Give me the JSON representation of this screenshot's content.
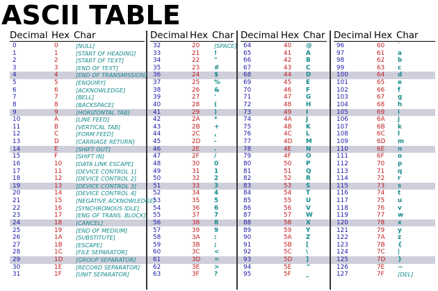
{
  "title": "ASCII TABLE",
  "headers": {
    "decimal": "Decimal",
    "hex": "Hex",
    "char": "Char"
  },
  "colors": {
    "decimal": "#1a1aa6",
    "hex": "#c41a1a",
    "char": "#138a8a",
    "band": "#cfcfdc"
  },
  "highlighted_row_indices": [
    4,
    9,
    14,
    19,
    24,
    29
  ],
  "columns": [
    {
      "rows": [
        {
          "dec": "0",
          "hex": "0",
          "char": "[NULL]"
        },
        {
          "dec": "1",
          "hex": "1",
          "char": "[START OF HEADING]"
        },
        {
          "dec": "2",
          "hex": "2",
          "char": "[START OF TEXT]"
        },
        {
          "dec": "3",
          "hex": "3",
          "char": "[END OF TEXT]"
        },
        {
          "dec": "4",
          "hex": "4",
          "char": "[END OF TRANSMISSION]"
        },
        {
          "dec": "5",
          "hex": "5",
          "char": "[ENQUIRY]"
        },
        {
          "dec": "6",
          "hex": "6",
          "char": "[ACKNOWLEDGE]"
        },
        {
          "dec": "7",
          "hex": "7",
          "char": "[BELL]"
        },
        {
          "dec": "8",
          "hex": "8",
          "char": "[BACKSPACE]"
        },
        {
          "dec": "9",
          "hex": "9",
          "char": "[HORIZONTAL TAB]"
        },
        {
          "dec": "10",
          "hex": "A",
          "char": "[LINE FEED]"
        },
        {
          "dec": "11",
          "hex": "B",
          "char": "[VERTICAL TAB]"
        },
        {
          "dec": "12",
          "hex": "C",
          "char": "[FORM FEED]"
        },
        {
          "dec": "13",
          "hex": "D",
          "char": "[CARRIAGE RETURN]"
        },
        {
          "dec": "14",
          "hex": "E",
          "char": "[SHIFT OUT]"
        },
        {
          "dec": "15",
          "hex": "F",
          "char": "[SHIFT IN]"
        },
        {
          "dec": "16",
          "hex": "10",
          "char": "[DATA LINK ESCAPE]"
        },
        {
          "dec": "17",
          "hex": "11",
          "char": "[DEVICE CONTROL 1]"
        },
        {
          "dec": "18",
          "hex": "12",
          "char": "[DEVICE CONTROL 2]"
        },
        {
          "dec": "19",
          "hex": "13",
          "char": "[DEVICE CONTROL 3]"
        },
        {
          "dec": "20",
          "hex": "14",
          "char": "[DEVICE CONTROL 4]"
        },
        {
          "dec": "21",
          "hex": "15",
          "char": "[NEGATIVE ACKNOWLEDGE]"
        },
        {
          "dec": "22",
          "hex": "16",
          "char": "[SYNCHRONOUS IDLE]"
        },
        {
          "dec": "23",
          "hex": "17",
          "char": "[ENG OF TRANS. BLOCK]"
        },
        {
          "dec": "24",
          "hex": "18",
          "char": "[CANCEL]"
        },
        {
          "dec": "25",
          "hex": "19",
          "char": "[END OF MEDIUM]"
        },
        {
          "dec": "26",
          "hex": "1A",
          "char": "[SUBSTITUTE]"
        },
        {
          "dec": "27",
          "hex": "1B",
          "char": "[ESCAPE]"
        },
        {
          "dec": "28",
          "hex": "1C",
          "char": "[FILE SEPARATOR]"
        },
        {
          "dec": "29",
          "hex": "1D",
          "char": "[GROUP SEPARATOR]"
        },
        {
          "dec": "30",
          "hex": "1E",
          "char": "[RECORD SEPARATOR]"
        },
        {
          "dec": "31",
          "hex": "1F",
          "char": "[UNIT SEPARATOR]"
        }
      ]
    },
    {
      "rows": [
        {
          "dec": "32",
          "hex": "20",
          "char": "[SPACE]"
        },
        {
          "dec": "33",
          "hex": "21",
          "char": "!"
        },
        {
          "dec": "34",
          "hex": "22",
          "char": "\""
        },
        {
          "dec": "35",
          "hex": "23",
          "char": "#"
        },
        {
          "dec": "36",
          "hex": "24",
          "char": "$"
        },
        {
          "dec": "37",
          "hex": "25",
          "char": "%"
        },
        {
          "dec": "38",
          "hex": "26",
          "char": "&"
        },
        {
          "dec": "39",
          "hex": "27",
          "char": "'"
        },
        {
          "dec": "40",
          "hex": "28",
          "char": "("
        },
        {
          "dec": "41",
          "hex": "29",
          "char": ")"
        },
        {
          "dec": "42",
          "hex": "2A",
          "char": "*"
        },
        {
          "dec": "43",
          "hex": "2B",
          "char": "+"
        },
        {
          "dec": "44",
          "hex": "2C",
          "char": ","
        },
        {
          "dec": "45",
          "hex": "2D",
          "char": "-"
        },
        {
          "dec": "46",
          "hex": "2E",
          "char": "."
        },
        {
          "dec": "47",
          "hex": "2F",
          "char": "/"
        },
        {
          "dec": "48",
          "hex": "30",
          "char": "0"
        },
        {
          "dec": "49",
          "hex": "31",
          "char": "1"
        },
        {
          "dec": "50",
          "hex": "32",
          "char": "2"
        },
        {
          "dec": "51",
          "hex": "33",
          "char": "3"
        },
        {
          "dec": "52",
          "hex": "34",
          "char": "4"
        },
        {
          "dec": "53",
          "hex": "35",
          "char": "5"
        },
        {
          "dec": "54",
          "hex": "36",
          "char": "6"
        },
        {
          "dec": "55",
          "hex": "37",
          "char": "7"
        },
        {
          "dec": "56",
          "hex": "38",
          "char": "8"
        },
        {
          "dec": "57",
          "hex": "39",
          "char": "9"
        },
        {
          "dec": "58",
          "hex": "3A",
          "char": ":"
        },
        {
          "dec": "59",
          "hex": "3B",
          "char": ";"
        },
        {
          "dec": "60",
          "hex": "3C",
          "char": "<"
        },
        {
          "dec": "61",
          "hex": "3D",
          "char": "="
        },
        {
          "dec": "62",
          "hex": "3E",
          "char": ">"
        },
        {
          "dec": "63",
          "hex": "3F",
          "char": "?"
        }
      ]
    },
    {
      "rows": [
        {
          "dec": "64",
          "hex": "40",
          "char": "@"
        },
        {
          "dec": "65",
          "hex": "41",
          "char": "A"
        },
        {
          "dec": "66",
          "hex": "42",
          "char": "B"
        },
        {
          "dec": "67",
          "hex": "43",
          "char": "C"
        },
        {
          "dec": "68",
          "hex": "44",
          "char": "D"
        },
        {
          "dec": "69",
          "hex": "45",
          "char": "E"
        },
        {
          "dec": "70",
          "hex": "46",
          "char": "F"
        },
        {
          "dec": "71",
          "hex": "47",
          "char": "G"
        },
        {
          "dec": "72",
          "hex": "48",
          "char": "H"
        },
        {
          "dec": "73",
          "hex": "49",
          "char": "I"
        },
        {
          "dec": "74",
          "hex": "4A",
          "char": "J"
        },
        {
          "dec": "75",
          "hex": "4B",
          "char": "K"
        },
        {
          "dec": "76",
          "hex": "4C",
          "char": "L"
        },
        {
          "dec": "77",
          "hex": "4D",
          "char": "M"
        },
        {
          "dec": "78",
          "hex": "4E",
          "char": "N"
        },
        {
          "dec": "79",
          "hex": "4F",
          "char": "O"
        },
        {
          "dec": "80",
          "hex": "50",
          "char": "P"
        },
        {
          "dec": "81",
          "hex": "51",
          "char": "Q"
        },
        {
          "dec": "82",
          "hex": "52",
          "char": "R"
        },
        {
          "dec": "83",
          "hex": "53",
          "char": "S"
        },
        {
          "dec": "84",
          "hex": "54",
          "char": "T"
        },
        {
          "dec": "85",
          "hex": "55",
          "char": "U"
        },
        {
          "dec": "86",
          "hex": "56",
          "char": "V"
        },
        {
          "dec": "87",
          "hex": "57",
          "char": "W"
        },
        {
          "dec": "88",
          "hex": "58",
          "char": "X"
        },
        {
          "dec": "89",
          "hex": "59",
          "char": "Y"
        },
        {
          "dec": "90",
          "hex": "5A",
          "char": "Z"
        },
        {
          "dec": "91",
          "hex": "5B",
          "char": "["
        },
        {
          "dec": "92",
          "hex": "5C",
          "char": "\\"
        },
        {
          "dec": "93",
          "hex": "5D",
          "char": "]"
        },
        {
          "dec": "94",
          "hex": "5E",
          "char": "^"
        },
        {
          "dec": "95",
          "hex": "5F",
          "char": "_"
        }
      ]
    },
    {
      "rows": [
        {
          "dec": "96",
          "hex": "60",
          "char": "`"
        },
        {
          "dec": "97",
          "hex": "61",
          "char": "a"
        },
        {
          "dec": "98",
          "hex": "62",
          "char": "b"
        },
        {
          "dec": "99",
          "hex": "63",
          "char": "c"
        },
        {
          "dec": "100",
          "hex": "64",
          "char": "d"
        },
        {
          "dec": "101",
          "hex": "65",
          "char": "e"
        },
        {
          "dec": "102",
          "hex": "66",
          "char": "f"
        },
        {
          "dec": "103",
          "hex": "67",
          "char": "g"
        },
        {
          "dec": "104",
          "hex": "68",
          "char": "h"
        },
        {
          "dec": "105",
          "hex": "69",
          "char": "i"
        },
        {
          "dec": "106",
          "hex": "6A",
          "char": "j"
        },
        {
          "dec": "107",
          "hex": "6B",
          "char": "k"
        },
        {
          "dec": "108",
          "hex": "6C",
          "char": "l"
        },
        {
          "dec": "109",
          "hex": "6D",
          "char": "m"
        },
        {
          "dec": "110",
          "hex": "6E",
          "char": "n"
        },
        {
          "dec": "111",
          "hex": "6F",
          "char": "o"
        },
        {
          "dec": "112",
          "hex": "70",
          "char": "p"
        },
        {
          "dec": "113",
          "hex": "71",
          "char": "q"
        },
        {
          "dec": "114",
          "hex": "72",
          "char": "r"
        },
        {
          "dec": "115",
          "hex": "73",
          "char": "s"
        },
        {
          "dec": "116",
          "hex": "74",
          "char": "t"
        },
        {
          "dec": "117",
          "hex": "75",
          "char": "u"
        },
        {
          "dec": "118",
          "hex": "76",
          "char": "v"
        },
        {
          "dec": "119",
          "hex": "77",
          "char": "w"
        },
        {
          "dec": "120",
          "hex": "78",
          "char": "x"
        },
        {
          "dec": "121",
          "hex": "79",
          "char": "y"
        },
        {
          "dec": "122",
          "hex": "7A",
          "char": "z"
        },
        {
          "dec": "123",
          "hex": "7B",
          "char": "{"
        },
        {
          "dec": "124",
          "hex": "7C",
          "char": "|"
        },
        {
          "dec": "125",
          "hex": "7D",
          "char": "}"
        },
        {
          "dec": "126",
          "hex": "7E",
          "char": "~"
        },
        {
          "dec": "127",
          "hex": "7F",
          "char": "[DEL]"
        }
      ]
    }
  ]
}
